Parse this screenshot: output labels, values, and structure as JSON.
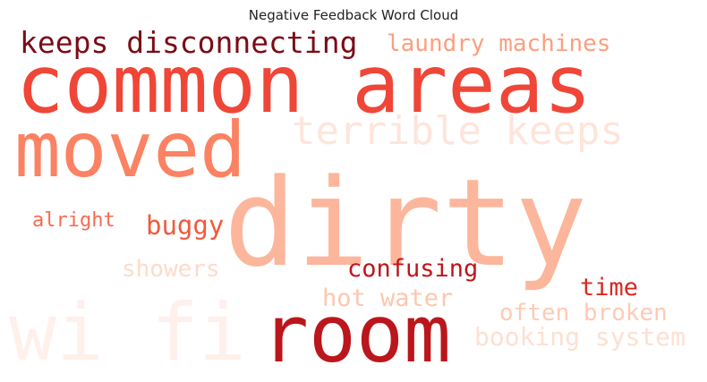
{
  "title": "Negative Feedback Word Cloud",
  "words": [
    {
      "text": "wi fi",
      "color": "#fff0eb"
    },
    {
      "text": "booking system",
      "color": "#fde0d2"
    },
    {
      "text": "terrible keeps",
      "color": "#fde5db"
    },
    {
      "text": "showers",
      "color": "#fddbcb"
    },
    {
      "text": "often broken",
      "color": "#fdcab5"
    },
    {
      "text": "hot water",
      "color": "#fcc7af"
    },
    {
      "text": "dirty",
      "color": "#fcb69b"
    },
    {
      "text": "laundry machines",
      "color": "#fc9f7f"
    },
    {
      "text": "moved",
      "color": "#fb8262"
    },
    {
      "text": "alright",
      "color": "#f86a50"
    },
    {
      "text": "buggy",
      "color": "#f05a3c"
    },
    {
      "text": "common areas",
      "color": "#ef4638"
    },
    {
      "text": "time",
      "color": "#d52a22"
    },
    {
      "text": "confusing",
      "color": "#c0141b"
    },
    {
      "text": "room",
      "color": "#bb161c"
    },
    {
      "text": "keeps disconnecting",
      "color": "#7b0c16"
    }
  ]
}
